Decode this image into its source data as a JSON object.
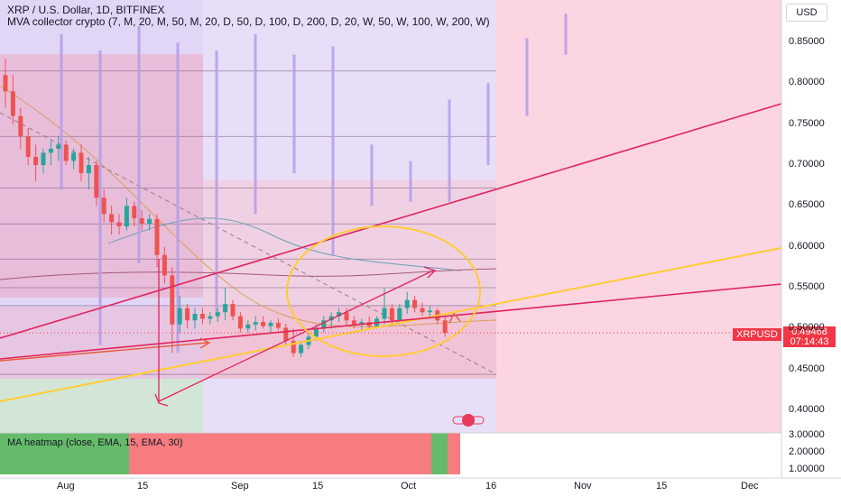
{
  "header": {
    "title": "XRP / U.S. Dollar, 1D, BITFINEX",
    "indicator": "MVA collector crypto (7, M, 20, M, 50, M, 20, D, 50, D, 100, D, 200, D, 20, W, 50, W, 100, W, 200, W)",
    "currency_button": "USD"
  },
  "price_tag": {
    "symbol": "XRPUSD",
    "price": "0.49468",
    "countdown": "07:14:43"
  },
  "heatmap": {
    "label": "MA heatmap (close, EMA, 15, EMA, 30)"
  },
  "colors": {
    "accent_red": "#f23645",
    "candle_up": "#26a69a",
    "candle_down": "#ef5350",
    "pink_zone": "#f7b3c8",
    "purple_zone": "#c9b5ee",
    "yellow": "#ffcc33",
    "line_red": "#e0245e"
  },
  "chart_data": [
    {
      "type": "candlestick",
      "y_axis": {
        "scale": "linear",
        "range": [
          0.38,
          0.885
        ],
        "ticks": [
          "0.85000",
          "0.80000",
          "0.75000",
          "0.70000",
          "0.65000",
          "0.60000",
          "0.55000",
          "0.50000",
          "0.45000",
          "0.40000"
        ]
      },
      "x_axis": {
        "tick_labels": [
          "Aug",
          "15",
          "Sep",
          "15",
          "Oct",
          "16",
          "Nov",
          "15",
          "Dec"
        ]
      },
      "last_price": 0.49468,
      "candles": [
        {
          "o": 0.81,
          "h": 0.83,
          "l": 0.77,
          "c": 0.79
        },
        {
          "o": 0.79,
          "h": 0.81,
          "l": 0.75,
          "c": 0.76
        },
        {
          "o": 0.76,
          "h": 0.77,
          "l": 0.72,
          "c": 0.735
        },
        {
          "o": 0.735,
          "h": 0.745,
          "l": 0.7,
          "c": 0.71
        },
        {
          "o": 0.71,
          "h": 0.725,
          "l": 0.68,
          "c": 0.7
        },
        {
          "o": 0.7,
          "h": 0.72,
          "l": 0.69,
          "c": 0.715
        },
        {
          "o": 0.715,
          "h": 0.73,
          "l": 0.7,
          "c": 0.72
        },
        {
          "o": 0.72,
          "h": 0.735,
          "l": 0.705,
          "c": 0.725
        },
        {
          "o": 0.725,
          "h": 0.73,
          "l": 0.7,
          "c": 0.705
        },
        {
          "o": 0.705,
          "h": 0.72,
          "l": 0.695,
          "c": 0.715
        },
        {
          "o": 0.715,
          "h": 0.725,
          "l": 0.68,
          "c": 0.69
        },
        {
          "o": 0.69,
          "h": 0.71,
          "l": 0.67,
          "c": 0.7
        },
        {
          "o": 0.7,
          "h": 0.705,
          "l": 0.65,
          "c": 0.66
        },
        {
          "o": 0.66,
          "h": 0.67,
          "l": 0.63,
          "c": 0.64
        },
        {
          "o": 0.64,
          "h": 0.65,
          "l": 0.615,
          "c": 0.63
        },
        {
          "o": 0.63,
          "h": 0.64,
          "l": 0.615,
          "c": 0.625
        },
        {
          "o": 0.625,
          "h": 0.66,
          "l": 0.62,
          "c": 0.65
        },
        {
          "o": 0.65,
          "h": 0.655,
          "l": 0.625,
          "c": 0.635
        },
        {
          "o": 0.635,
          "h": 0.645,
          "l": 0.62,
          "c": 0.628
        },
        {
          "o": 0.628,
          "h": 0.64,
          "l": 0.62,
          "c": 0.634
        },
        {
          "o": 0.634,
          "h": 0.64,
          "l": 0.575,
          "c": 0.59
        },
        {
          "o": 0.59,
          "h": 0.6,
          "l": 0.555,
          "c": 0.565
        },
        {
          "o": 0.565,
          "h": 0.575,
          "l": 0.47,
          "c": 0.505
        },
        {
          "o": 0.505,
          "h": 0.54,
          "l": 0.495,
          "c": 0.525
        },
        {
          "o": 0.525,
          "h": 0.53,
          "l": 0.5,
          "c": 0.51
        },
        {
          "o": 0.51,
          "h": 0.525,
          "l": 0.5,
          "c": 0.518
        },
        {
          "o": 0.518,
          "h": 0.525,
          "l": 0.505,
          "c": 0.512
        },
        {
          "o": 0.512,
          "h": 0.52,
          "l": 0.505,
          "c": 0.515
        },
        {
          "o": 0.515,
          "h": 0.525,
          "l": 0.508,
          "c": 0.52
        },
        {
          "o": 0.52,
          "h": 0.55,
          "l": 0.51,
          "c": 0.53
        },
        {
          "o": 0.53,
          "h": 0.535,
          "l": 0.51,
          "c": 0.515
        },
        {
          "o": 0.515,
          "h": 0.52,
          "l": 0.495,
          "c": 0.5
        },
        {
          "o": 0.5,
          "h": 0.51,
          "l": 0.495,
          "c": 0.505
        },
        {
          "o": 0.505,
          "h": 0.515,
          "l": 0.498,
          "c": 0.508
        },
        {
          "o": 0.508,
          "h": 0.515,
          "l": 0.5,
          "c": 0.503
        },
        {
          "o": 0.503,
          "h": 0.51,
          "l": 0.495,
          "c": 0.507
        },
        {
          "o": 0.507,
          "h": 0.512,
          "l": 0.498,
          "c": 0.501
        },
        {
          "o": 0.501,
          "h": 0.506,
          "l": 0.48,
          "c": 0.485
        },
        {
          "o": 0.485,
          "h": 0.5,
          "l": 0.465,
          "c": 0.47
        },
        {
          "o": 0.47,
          "h": 0.485,
          "l": 0.465,
          "c": 0.48
        },
        {
          "o": 0.48,
          "h": 0.495,
          "l": 0.475,
          "c": 0.49
        },
        {
          "o": 0.49,
          "h": 0.505,
          "l": 0.485,
          "c": 0.5
        },
        {
          "o": 0.5,
          "h": 0.515,
          "l": 0.495,
          "c": 0.51
        },
        {
          "o": 0.51,
          "h": 0.52,
          "l": 0.5,
          "c": 0.515
        },
        {
          "o": 0.515,
          "h": 0.525,
          "l": 0.508,
          "c": 0.52
        },
        {
          "o": 0.52,
          "h": 0.525,
          "l": 0.505,
          "c": 0.51
        },
        {
          "o": 0.51,
          "h": 0.515,
          "l": 0.5,
          "c": 0.505
        },
        {
          "o": 0.505,
          "h": 0.512,
          "l": 0.498,
          "c": 0.508
        },
        {
          "o": 0.508,
          "h": 0.515,
          "l": 0.5,
          "c": 0.503
        },
        {
          "o": 0.503,
          "h": 0.515,
          "l": 0.5,
          "c": 0.512
        },
        {
          "o": 0.512,
          "h": 0.55,
          "l": 0.505,
          "c": 0.525
        },
        {
          "o": 0.525,
          "h": 0.53,
          "l": 0.505,
          "c": 0.51
        },
        {
          "o": 0.51,
          "h": 0.53,
          "l": 0.505,
          "c": 0.525
        },
        {
          "o": 0.525,
          "h": 0.545,
          "l": 0.518,
          "c": 0.535
        },
        {
          "o": 0.535,
          "h": 0.54,
          "l": 0.52,
          "c": 0.525
        },
        {
          "o": 0.525,
          "h": 0.532,
          "l": 0.515,
          "c": 0.52
        },
        {
          "o": 0.52,
          "h": 0.528,
          "l": 0.512,
          "c": 0.522
        },
        {
          "o": 0.522,
          "h": 0.525,
          "l": 0.505,
          "c": 0.51
        },
        {
          "o": 0.51,
          "h": 0.515,
          "l": 0.49,
          "c": 0.49468
        }
      ],
      "projection_bars": [
        {
          "h": 0.86,
          "l": 0.67
        },
        {
          "h": 0.84,
          "l": 0.48
        },
        {
          "h": 0.87,
          "l": 0.58
        },
        {
          "h": 0.85,
          "l": 0.47
        },
        {
          "h": 0.84,
          "l": 0.52
        },
        {
          "h": 0.86,
          "l": 0.64
        },
        {
          "h": 0.835,
          "l": 0.69
        },
        {
          "h": 0.845,
          "l": 0.59
        },
        {
          "h": 0.725,
          "l": 0.65
        },
        {
          "h": 0.705,
          "l": 0.655
        },
        {
          "h": 0.78,
          "l": 0.655
        },
        {
          "h": 0.8,
          "l": 0.7
        },
        {
          "h": 0.855,
          "l": 0.76
        },
        {
          "h": 0.885,
          "l": 0.835
        }
      ],
      "horizontal_levels": [
        0.815,
        0.735,
        0.672,
        0.628,
        0.585,
        0.55,
        0.528,
        0.444
      ]
    },
    {
      "type": "heatmap",
      "y_axis": {
        "ticks": [
          "3.00000",
          "2.00000",
          "1.00000"
        ]
      },
      "segments": [
        {
          "state": "bullish",
          "color": "#66bb6a"
        },
        {
          "state": "bearish",
          "color": "#f77c80"
        },
        {
          "state": "bullish",
          "color": "#66bb6a"
        },
        {
          "state": "bearish",
          "color": "#f77c80"
        }
      ]
    }
  ]
}
